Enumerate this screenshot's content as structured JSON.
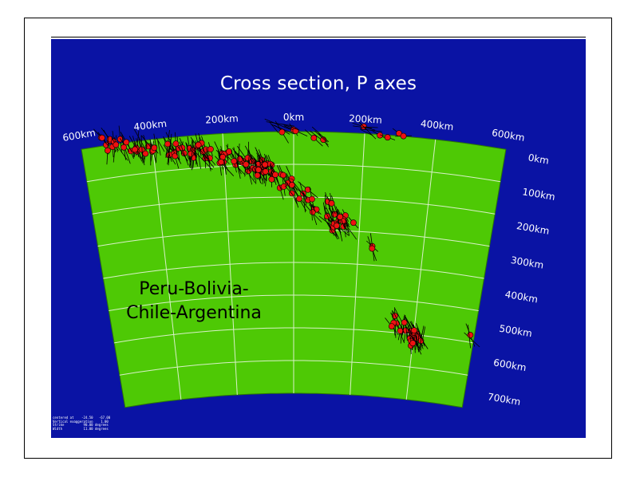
{
  "title": "Cross section, P axes",
  "region_label": [
    "Peru-Bolivia-",
    "Chile-Argentina"
  ],
  "x_axis": {
    "labels": [
      "600km",
      "400km",
      "200km",
      "0km",
      "200km",
      "400km",
      "600km"
    ]
  },
  "y_axis": {
    "labels": [
      "0km",
      "100km",
      "200km",
      "300km",
      "400km",
      "500km",
      "600km",
      "700km"
    ]
  },
  "colors": {
    "background_panel": "#0a13a4",
    "section_fill": "#4ec905",
    "grid": "#d8f0c8",
    "event_marker": "#ee1111",
    "axis_line": "#000000"
  },
  "footer_text": [
    "centered at    -24.50   -67.00",
    "Vertical exaggeration    1.00",
    "Strike          90.00 degrees",
    "Width           11.00 degrees"
  ]
}
